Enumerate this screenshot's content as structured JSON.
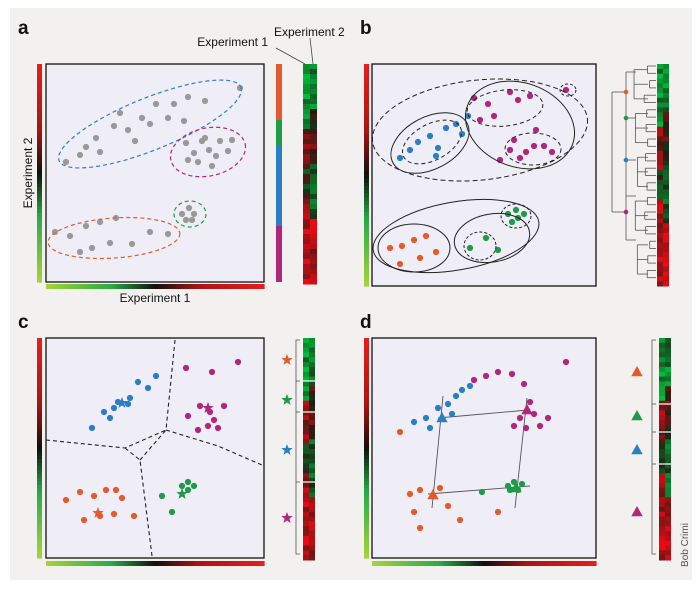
{
  "panels": {
    "a": {
      "label": "a",
      "xlabel": "Experiment 1",
      "ylabel": "Experiment 2",
      "col1_label": "Experiment 1",
      "col2_label": "Experiment 2"
    },
    "b": {
      "label": "b"
    },
    "c": {
      "label": "c"
    },
    "d": {
      "label": "d"
    }
  },
  "credit": "Bob Crimi",
  "colors": {
    "panel_bg": "#efedf5",
    "grey_point": "#999999",
    "blue": "#2a7fc4",
    "magenta": "#b0267a",
    "green": "#1f9a47",
    "orange": "#e35b2c",
    "heat_red": "#e31a1c",
    "heat_green": "#3bb44a",
    "heat_lightgreen": "#9ccf3c",
    "figure_bg": "#f2f1f0"
  },
  "clusters": [
    "blue",
    "magenta",
    "orange",
    "green"
  ],
  "icons": [
    "star-marker-icon",
    "triangle-marker-icon",
    "dendrogram-icon"
  ]
}
